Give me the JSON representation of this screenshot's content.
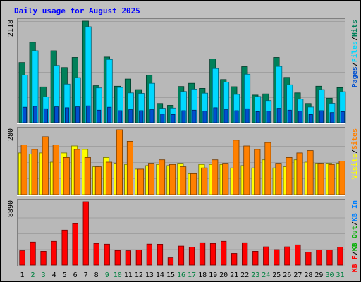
{
  "chart_data": [
    {
      "type": "bar",
      "title": "Daily usage for August 2025",
      "categories": [
        "1",
        "2",
        "3",
        "4",
        "5",
        "6",
        "7",
        "8",
        "9",
        "10",
        "11",
        "12",
        "13",
        "14",
        "15",
        "16",
        "17",
        "18",
        "19",
        "20",
        "21",
        "22",
        "23",
        "24",
        "25",
        "26",
        "27",
        "28",
        "29",
        "30",
        "31"
      ],
      "weekend_days": [
        "2",
        "3",
        "9",
        "10",
        "16",
        "17",
        "23",
        "24",
        "30",
        "31"
      ],
      "ymax_label": "2118",
      "ylim": [
        0,
        2118
      ],
      "series": [
        {
          "name": "Hits",
          "color": "#00805a",
          "values": [
            1255,
            1680,
            745,
            1500,
            1150,
            1360,
            2118,
            770,
            1370,
            760,
            910,
            690,
            990,
            400,
            360,
            755,
            820,
            715,
            1330,
            900,
            750,
            1170,
            575,
            600,
            1360,
            945,
            620,
            400,
            760,
            510,
            730
          ]
        },
        {
          "name": "Files",
          "color": "#00d8ff",
          "values": [
            995,
            1500,
            535,
            1195,
            805,
            940,
            2000,
            725,
            1320,
            735,
            620,
            610,
            820,
            300,
            305,
            650,
            700,
            615,
            1130,
            845,
            590,
            1010,
            545,
            460,
            1175,
            790,
            490,
            325,
            690,
            405,
            645
          ]
        },
        {
          "name": "Pages",
          "color": "#0050d0",
          "values": [
            320,
            340,
            290,
            330,
            310,
            330,
            350,
            260,
            320,
            250,
            270,
            250,
            270,
            180,
            170,
            250,
            260,
            240,
            310,
            270,
            250,
            290,
            230,
            240,
            300,
            260,
            240,
            170,
            250,
            210,
            230
          ]
        }
      ],
      "legend": [
        "Pages",
        "/",
        "Files",
        "/",
        "Hits"
      ]
    },
    {
      "type": "bar",
      "ymax_label": "280",
      "ylim": [
        0,
        280
      ],
      "series": [
        {
          "name": "Visits",
          "color": "#ffff00",
          "values": [
            180,
            175,
            180,
            140,
            180,
            210,
            195,
            120,
            160,
            135,
            130,
            110,
            125,
            130,
            125,
            135,
            90,
            130,
            130,
            130,
            115,
            125,
            115,
            150,
            115,
            120,
            150,
            140,
            135,
            135,
            135
          ]
        },
        {
          "name": "Sites",
          "color": "#ff8000",
          "values": [
            215,
            195,
            250,
            215,
            160,
            195,
            160,
            120,
            140,
            280,
            230,
            110,
            135,
            150,
            130,
            120,
            90,
            115,
            150,
            135,
            235,
            210,
            195,
            225,
            135,
            160,
            180,
            190,
            135,
            130,
            145
          ]
        }
      ],
      "legend": [
        "Visits",
        "/",
        "Sites"
      ]
    },
    {
      "type": "bar",
      "ymax_label": "8890",
      "ylim": [
        0,
        8890
      ],
      "series": [
        {
          "name": "KB F",
          "color": "#ff0000",
          "values": [
            2020,
            3230,
            1940,
            3330,
            4910,
            5800,
            8890,
            3030,
            2930,
            2040,
            2020,
            2130,
            2940,
            2920,
            1030,
            2660,
            2520,
            3130,
            3030,
            3330,
            1630,
            3130,
            1940,
            2560,
            2170,
            2560,
            2830,
            1840,
            2130,
            2120,
            2510
          ]
        },
        {
          "name": "KB Out",
          "color": "#00b000",
          "values": []
        },
        {
          "name": "KB In",
          "color": "#0080ff",
          "values": []
        }
      ],
      "legend": [
        "KB F",
        "/",
        "KB Out",
        "/",
        "KB In"
      ]
    }
  ]
}
